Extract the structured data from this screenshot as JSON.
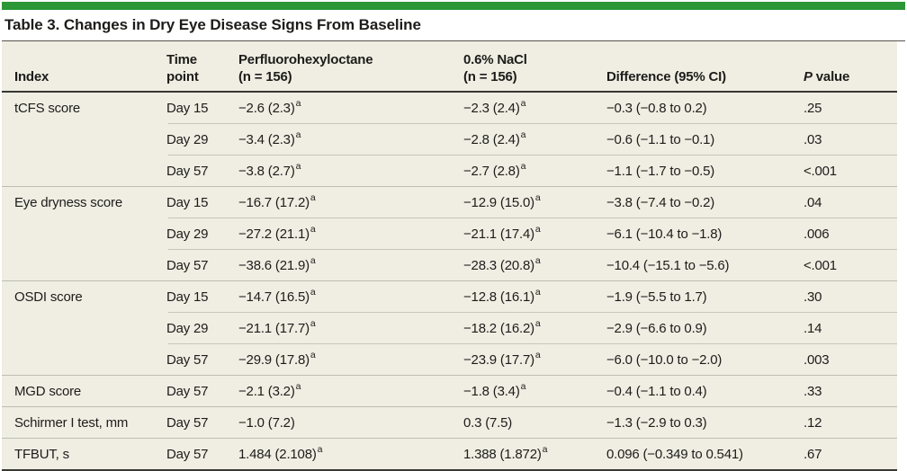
{
  "page": {
    "accent_green": "#2b9737",
    "table_background": "#f0eee3",
    "background": "#ffffff"
  },
  "table": {
    "title": "Table 3. Changes in Dry Eye Disease Signs From Baseline",
    "header": {
      "index": "Index",
      "time": {
        "line1": "Time",
        "line2": "point"
      },
      "drug1": {
        "line1": "Perfluorohexyloctane",
        "line2": "(n = 156)"
      },
      "drug2": {
        "line1": "0.6% NaCl",
        "line2": "(n = 156)"
      },
      "difference": "Difference (95% CI)",
      "p": {
        "italic": "P",
        "rest": " value"
      }
    },
    "rows": [
      {
        "index": "tCFS score",
        "time": "Day 15",
        "pfho": "−2.6 (2.3)",
        "pfho_sup": "a",
        "nacl": "−2.3 (2.4)",
        "nacl_sup": "a",
        "diff": "−0.3 (−0.8 to 0.2)",
        "p": ".25"
      },
      {
        "index": "",
        "time": "Day 29",
        "pfho": "−3.4 (2.3)",
        "pfho_sup": "a",
        "nacl": "−2.8 (2.4)",
        "nacl_sup": "a",
        "diff": "−0.6 (−1.1 to −0.1)",
        "p": ".03"
      },
      {
        "index": "",
        "time": "Day 57",
        "pfho": "−3.8 (2.7)",
        "pfho_sup": "a",
        "nacl": "−2.7 (2.8)",
        "nacl_sup": "a",
        "diff": "−1.1 (−1.7 to −0.5)",
        "p": "<.001"
      },
      {
        "index": "Eye dryness score",
        "time": "Day 15",
        "pfho": "−16.7 (17.2)",
        "pfho_sup": "a",
        "nacl": "−12.9 (15.0)",
        "nacl_sup": "a",
        "diff": "−3.8 (−7.4 to −0.2)",
        "p": ".04"
      },
      {
        "index": "",
        "time": "Day 29",
        "pfho": "−27.2 (21.1)",
        "pfho_sup": "a",
        "nacl": "−21.1 (17.4)",
        "nacl_sup": "a",
        "diff": "−6.1 (−10.4 to −1.8)",
        "p": ".006"
      },
      {
        "index": "",
        "time": "Day 57",
        "pfho": "−38.6 (21.9)",
        "pfho_sup": "a",
        "nacl": "−28.3 (20.8)",
        "nacl_sup": "a",
        "diff": "−10.4 (−15.1 to −5.6)",
        "p": "<.001"
      },
      {
        "index": "OSDI score",
        "time": "Day 15",
        "pfho": "−14.7 (16.5)",
        "pfho_sup": "a",
        "nacl": "−12.8 (16.1)",
        "nacl_sup": "a",
        "diff": "−1.9 (−5.5 to 1.7)",
        "p": ".30"
      },
      {
        "index": "",
        "time": "Day 29",
        "pfho": "−21.1 (17.7)",
        "pfho_sup": "a",
        "nacl": "−18.2 (16.2)",
        "nacl_sup": "a",
        "diff": "−2.9 (−6.6 to 0.9)",
        "p": ".14"
      },
      {
        "index": "",
        "time": "Day 57",
        "pfho": "−29.9 (17.8)",
        "pfho_sup": "a",
        "nacl": "−23.9 (17.7)",
        "nacl_sup": "a",
        "diff": "−6.0 (−10.0 to −2.0)",
        "p": ".003"
      },
      {
        "index": "MGD score",
        "time": "Day 57",
        "pfho": "−2.1 (3.2)",
        "pfho_sup": "a",
        "nacl": "−1.8 (3.4)",
        "nacl_sup": "a",
        "diff": "−0.4 (−1.1 to 0.4)",
        "p": ".33"
      },
      {
        "index": "Schirmer I test, mm",
        "time": "Day 57",
        "pfho": "−1.0 (7.2)",
        "pfho_sup": "",
        "nacl": "0.3 (7.5)",
        "nacl_sup": "",
        "diff": "−1.3 (−2.9 to 0.3)",
        "p": ".12"
      },
      {
        "index": "TFBUT, s",
        "time": "Day 57",
        "pfho": "1.484 (2.108)",
        "pfho_sup": "a",
        "nacl": "1.388 (1.872)",
        "nacl_sup": "a",
        "diff": "0.096 (−0.349 to 0.541)",
        "p": ".67"
      }
    ]
  }
}
